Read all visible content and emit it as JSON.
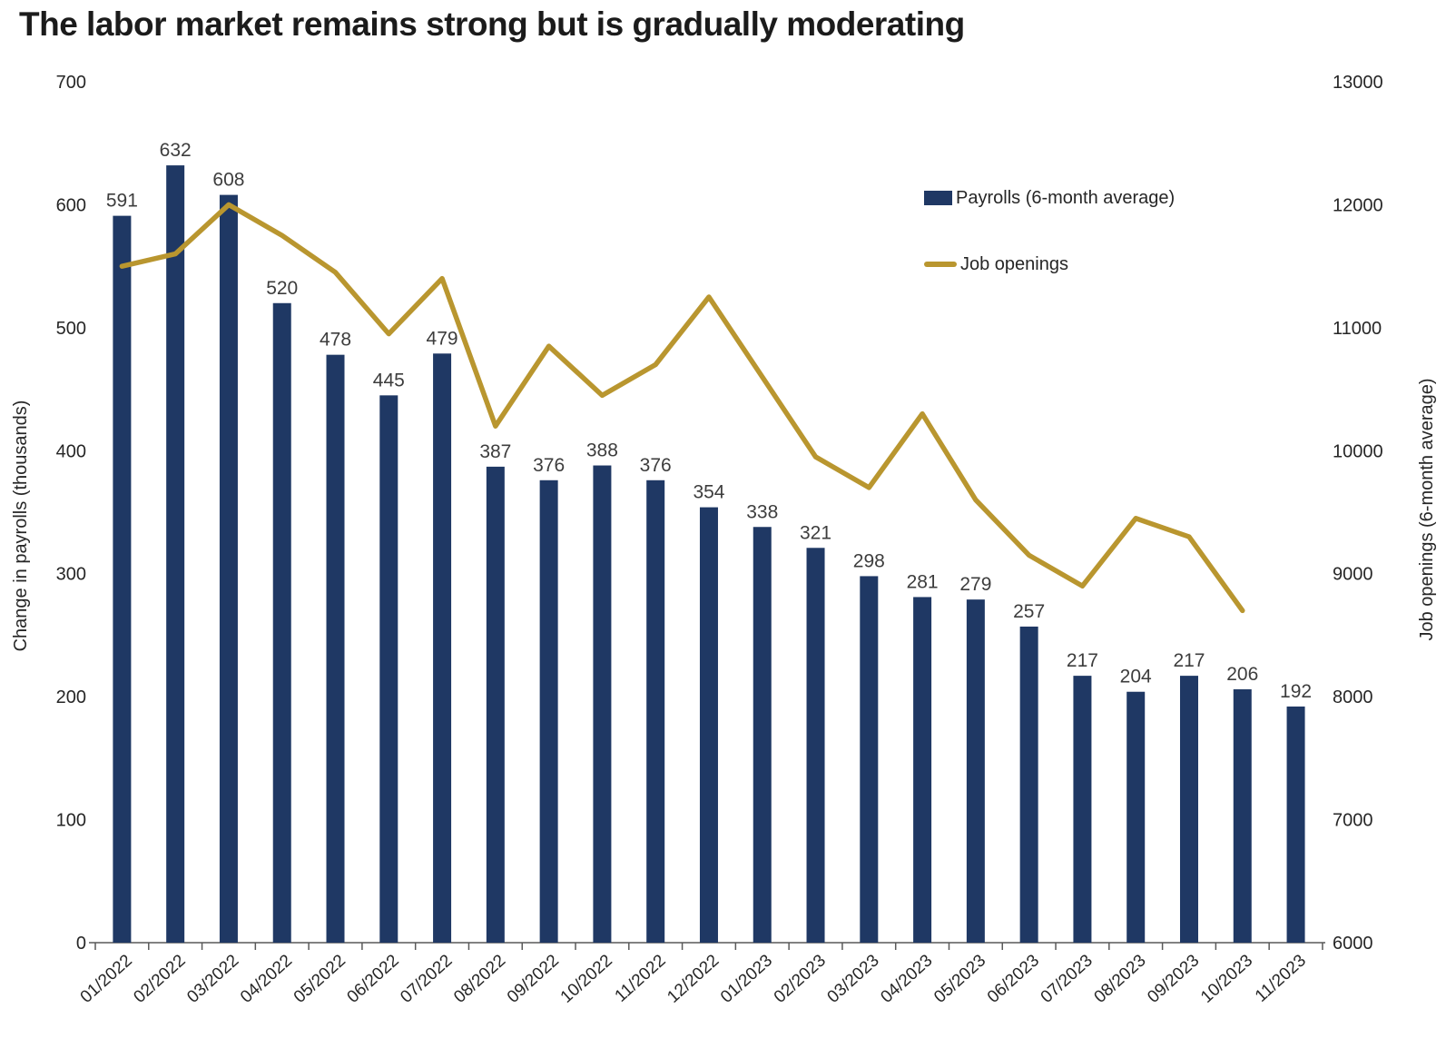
{
  "page": {
    "background": "#ffffff"
  },
  "chart_data": {
    "type": "bar",
    "title": "The labor market remains strong but is gradually moderating",
    "categories": [
      "01/2022",
      "02/2022",
      "03/2022",
      "04/2022",
      "05/2022",
      "06/2022",
      "07/2022",
      "08/2022",
      "09/2022",
      "10/2022",
      "11/2022",
      "12/2022",
      "01/2023",
      "02/2023",
      "03/2023",
      "04/2023",
      "05/2023",
      "06/2023",
      "07/2023",
      "08/2023",
      "09/2023",
      "10/2023",
      "11/2023"
    ],
    "series": [
      {
        "name": "Payrolls (6-month average)",
        "type": "bar",
        "axis": "left",
        "color": "#1F3864",
        "values": [
          591,
          632,
          608,
          520,
          478,
          445,
          479,
          387,
          376,
          388,
          376,
          354,
          338,
          321,
          298,
          281,
          279,
          257,
          217,
          204,
          217,
          206,
          192
        ]
      },
      {
        "name": "Job openings",
        "type": "line",
        "axis": "right",
        "color": "#B9962F",
        "values": [
          11500,
          11600,
          12000,
          11750,
          11450,
          10950,
          11400,
          10200,
          10850,
          10450,
          10700,
          11250,
          10600,
          9950,
          9700,
          10300,
          9600,
          9150,
          8900,
          9450,
          9300,
          8700,
          null
        ]
      }
    ],
    "left_axis": {
      "label": "Change in payrolls (thousands)",
      "min": 0,
      "max": 700,
      "step": 100,
      "ticks": [
        0,
        100,
        200,
        300,
        400,
        500,
        600,
        700
      ]
    },
    "right_axis": {
      "label": "Job openings (6-month average)",
      "min": 6000,
      "max": 13000,
      "step": 1000,
      "ticks": [
        6000,
        7000,
        8000,
        9000,
        10000,
        11000,
        12000,
        13000
      ]
    },
    "grid": false,
    "legend_position": "upper-right",
    "bar_value_labels": true
  }
}
